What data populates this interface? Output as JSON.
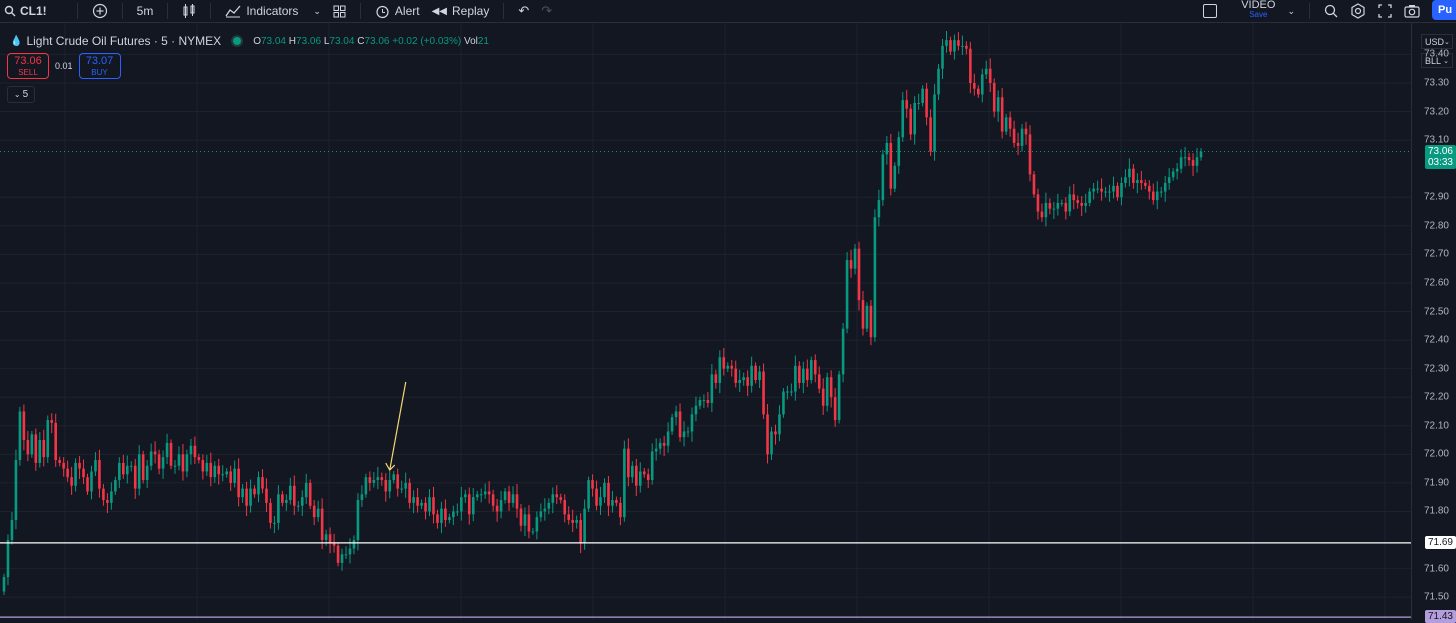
{
  "toolbar": {
    "symbol": "CL1!",
    "interval": "5m",
    "indicators_label": "Indicators",
    "alert_label": "Alert",
    "replay_label": "Replay",
    "video_label": "VIDEO",
    "video_save": "Save",
    "publish_label": "Pu"
  },
  "legend": {
    "title": "Light Crude Oil Futures · 5 · NYMEX",
    "o_label": "O",
    "o_val": "73.04",
    "h_label": "H",
    "h_val": "73.06",
    "l_label": "L",
    "l_val": "73.04",
    "c_label": "C",
    "c_val": "73.06",
    "change": "+0.02 (+0.03%)",
    "vol_label": "Vol",
    "vol_val": "21"
  },
  "trade": {
    "sell_price": "73.06",
    "sell_label": "SELL",
    "spread": "0.01",
    "buy_price": "73.07",
    "buy_label": "BUY",
    "collapse_value": "5"
  },
  "axis": {
    "currency": "USD",
    "unit": "BLL",
    "ticks": [
      "73.40",
      "73.30",
      "73.20",
      "73.10",
      "72.90",
      "72.80",
      "72.70",
      "72.60",
      "72.50",
      "72.40",
      "72.30",
      "72.20",
      "72.10",
      "72.00",
      "71.90",
      "71.80",
      "71.60",
      "71.50"
    ],
    "last_price": "73.06",
    "countdown": "03:33",
    "line1": "71.69",
    "line2": "71.43"
  },
  "colors": {
    "up": "#089981",
    "down": "#f23645",
    "line1": "#ffffff",
    "line2": "#b39ddb",
    "arrow": "#f5d76e"
  },
  "chart_data": {
    "type": "candlestick",
    "ylim": [
      71.42,
      73.51
    ],
    "arrow_at_candle": 97,
    "closes": [
      71.57,
      71.7,
      71.77,
      71.98,
      72.15,
      72.05,
      72.0,
      72.07,
      71.97,
      72.05,
      71.99,
      72.12,
      72.11,
      71.98,
      71.97,
      71.95,
      71.92,
      71.89,
      71.97,
      71.95,
      71.92,
      71.87,
      71.94,
      71.98,
      71.88,
      71.84,
      71.83,
      71.87,
      71.91,
      71.97,
      71.93,
      71.96,
      71.96,
      71.88,
      72.0,
      71.91,
      71.96,
      72.01,
      72.0,
      71.95,
      71.99,
      72.04,
      71.96,
      71.96,
      72.0,
      71.94,
      72.0,
      72.03,
      71.99,
      71.98,
      71.94,
      71.97,
      71.92,
      71.96,
      71.93,
      71.93,
      71.94,
      71.9,
      71.95,
      71.85,
      71.88,
      71.82,
      71.88,
      71.86,
      71.92,
      71.88,
      71.83,
      71.76,
      71.76,
      71.86,
      71.83,
      71.84,
      71.89,
      71.82,
      71.82,
      71.85,
      71.9,
      71.82,
      71.78,
      71.81,
      71.7,
      71.72,
      71.69,
      71.68,
      71.62,
      71.65,
      71.65,
      71.67,
      71.7,
      71.84,
      71.86,
      71.92,
      71.9,
      71.91,
      71.92,
      71.91,
      71.87,
      71.91,
      71.93,
      71.88,
      71.88,
      71.9,
      71.83,
      71.85,
      71.82,
      71.83,
      71.8,
      71.85,
      71.79,
      71.76,
      71.81,
      71.77,
      71.78,
      71.8,
      71.8,
      71.85,
      71.86,
      71.79,
      71.85,
      71.86,
      71.86,
      71.87,
      71.86,
      71.82,
      71.8,
      71.84,
      71.87,
      71.83,
      71.86,
      71.81,
      71.75,
      71.79,
      71.73,
      71.73,
      71.78,
      71.8,
      71.81,
      71.83,
      71.86,
      71.85,
      71.84,
      71.79,
      71.77,
      71.76,
      71.77,
      71.69,
      71.81,
      71.91,
      71.88,
      71.82,
      71.85,
      71.9,
      71.82,
      71.84,
      71.83,
      71.78,
      72.02,
      71.92,
      71.96,
      71.89,
      71.94,
      71.93,
      71.91,
      72.01,
      72.02,
      72.04,
      72.03,
      72.08,
      72.13,
      72.15,
      72.06,
      72.08,
      72.08,
      72.14,
      72.17,
      72.19,
      72.19,
      72.18,
      72.28,
      72.25,
      72.34,
      72.3,
      72.31,
      72.3,
      72.25,
      72.26,
      72.27,
      72.24,
      72.31,
      72.26,
      72.29,
      72.14,
      72.0,
      72.08,
      72.07,
      72.14,
      72.22,
      72.22,
      72.22,
      72.31,
      72.25,
      72.3,
      72.26,
      72.33,
      72.28,
      72.23,
      72.17,
      72.27,
      72.2,
      72.12,
      72.28,
      72.44,
      72.68,
      72.65,
      72.72,
      72.54,
      72.44,
      72.52,
      72.41,
      72.83,
      72.89,
      73.05,
      73.09,
      72.93,
      73.01,
      73.11,
      73.24,
      73.21,
      73.12,
      73.23,
      73.23,
      73.28,
      73.18,
      73.06,
      73.26,
      73.35,
      73.43,
      73.45,
      73.41,
      73.45,
      73.43,
      73.43,
      73.42,
      73.3,
      73.28,
      73.26,
      73.33,
      73.35,
      73.3,
      73.2,
      73.25,
      73.13,
      73.18,
      73.14,
      73.09,
      73.08,
      73.14,
      73.12,
      72.98,
      72.91,
      72.85,
      72.83,
      72.88,
      72.86,
      72.86,
      72.88,
      72.88,
      72.85,
      72.91,
      72.89,
      72.88,
      72.87,
      72.88,
      72.92,
      72.93,
      72.93,
      72.92,
      72.92,
      72.92,
      72.94,
      72.9,
      72.95,
      72.97,
      73.0,
      72.95,
      72.96,
      72.95,
      72.94,
      72.92,
      72.89,
      72.92,
      72.92,
      72.95,
      72.97,
      72.99,
      73.0,
      73.04,
      73.04,
      73.03,
      73.01,
      73.04,
      73.06
    ]
  }
}
